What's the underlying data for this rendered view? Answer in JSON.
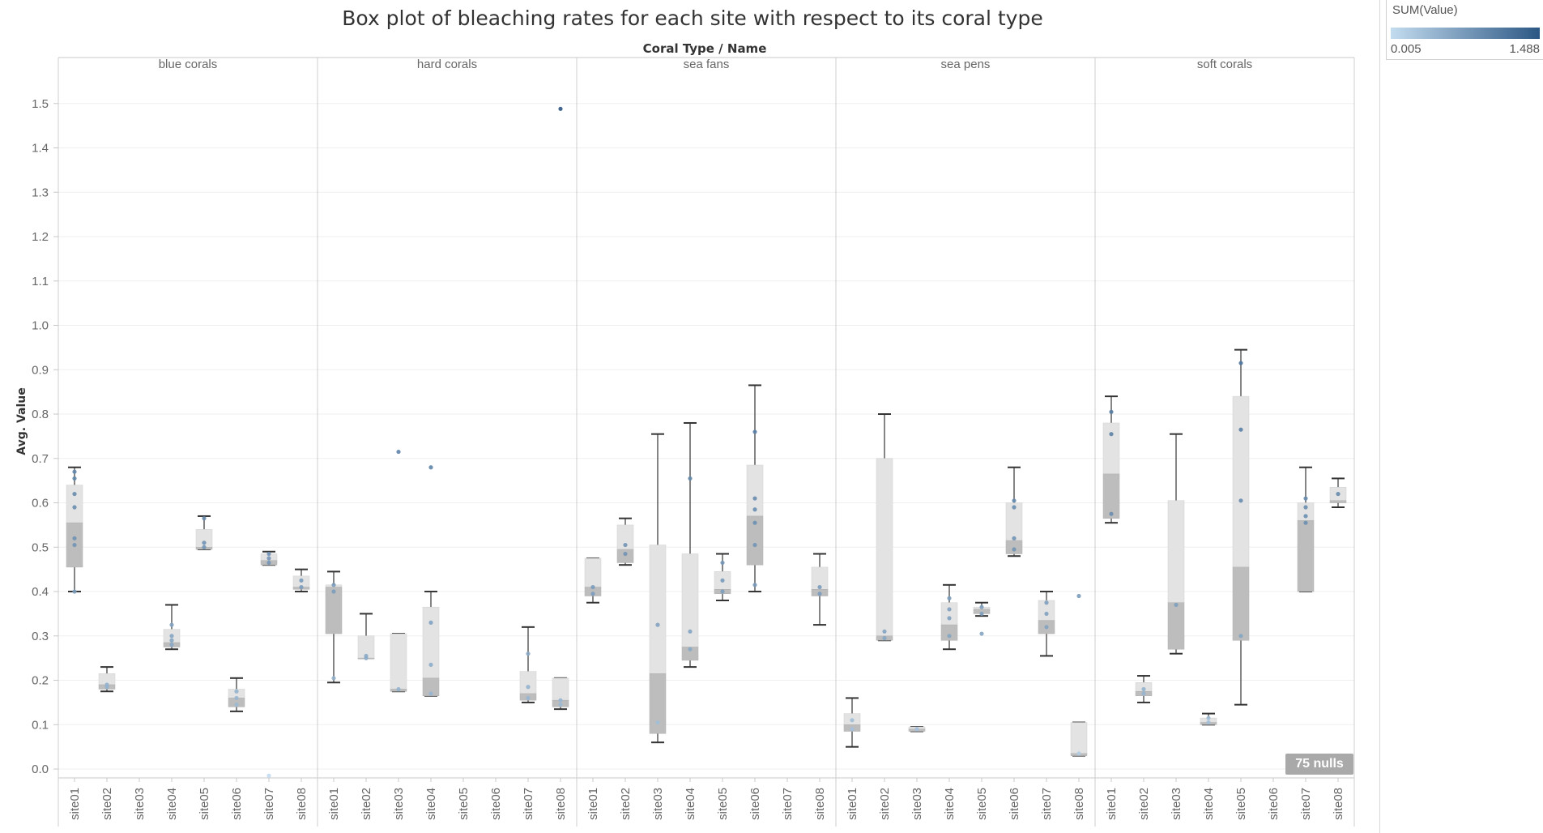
{
  "title": "Box plot of  bleaching rates for each site with respect to its coral type",
  "header_title": "Coral Type  /  Name",
  "legend": {
    "title": "SUM(Value)",
    "min_label": "0.005",
    "max_label": "1.488",
    "color_low": "#c3dcef",
    "color_high": "#2c5784"
  },
  "nulls_badge": "75 nulls",
  "chart_data": {
    "type": "boxplot",
    "ylabel": "Avg. Value",
    "ylim": [
      -0.02,
      1.6
    ],
    "y_ticks": [
      "0.0",
      "0.1",
      "0.2",
      "0.3",
      "0.4",
      "0.5",
      "0.6",
      "0.7",
      "0.8",
      "0.9",
      "1.0",
      "1.1",
      "1.2",
      "1.3",
      "1.4",
      "1.5"
    ],
    "grid": true,
    "color_range": [
      0.005,
      1.488
    ],
    "sites": [
      "site01",
      "site02",
      "site03",
      "site04",
      "site05",
      "site06",
      "site07",
      "site08"
    ],
    "panels": [
      {
        "name": "blue corals",
        "boxes": [
          {
            "site": "site01",
            "min": 0.4,
            "q1": 0.455,
            "median": 0.555,
            "q3": 0.64,
            "max": 0.68,
            "points": [
              0.4,
              0.505,
              0.52,
              0.59,
              0.62,
              0.655,
              0.67
            ]
          },
          {
            "site": "site02",
            "min": 0.175,
            "q1": 0.18,
            "median": 0.19,
            "q3": 0.215,
            "max": 0.23,
            "points": [
              0.185,
              0.19
            ]
          },
          {
            "site": "site03",
            "points": []
          },
          {
            "site": "site04",
            "min": 0.27,
            "q1": 0.275,
            "median": 0.285,
            "q3": 0.315,
            "max": 0.37,
            "points": [
              0.28,
              0.29,
              0.3,
              0.325
            ]
          },
          {
            "site": "site05",
            "min": 0.495,
            "q1": 0.495,
            "median": 0.5,
            "q3": 0.54,
            "max": 0.57,
            "points": [
              0.5,
              0.51,
              0.565
            ]
          },
          {
            "site": "site06",
            "min": 0.13,
            "q1": 0.14,
            "median": 0.16,
            "q3": 0.18,
            "max": 0.205,
            "points": [
              0.145,
              0.16,
              0.175
            ]
          },
          {
            "site": "site07",
            "min": 0.46,
            "q1": 0.46,
            "median": 0.47,
            "q3": 0.485,
            "max": 0.49,
            "points": [
              0.465,
              0.475,
              0.485,
              -0.015
            ]
          },
          {
            "site": "site08",
            "min": 0.4,
            "q1": 0.405,
            "median": 0.41,
            "q3": 0.435,
            "max": 0.45,
            "points": [
              0.41,
              0.425
            ]
          }
        ]
      },
      {
        "name": "hard corals",
        "boxes": [
          {
            "site": "site01",
            "min": 0.195,
            "q1": 0.305,
            "median": 0.41,
            "q3": 0.415,
            "max": 0.445,
            "points": [
              0.205,
              0.4,
              0.415
            ]
          },
          {
            "site": "site02",
            "min": 0.25,
            "q1": 0.25,
            "median": 0.25,
            "q3": 0.3,
            "max": 0.35,
            "points": [
              0.25,
              0.255
            ]
          },
          {
            "site": "site03",
            "min": 0.175,
            "q1": 0.175,
            "median": 0.18,
            "q3": 0.305,
            "max": 0.305,
            "points": [
              0.18,
              0.715
            ]
          },
          {
            "site": "site04",
            "min": 0.165,
            "q1": 0.165,
            "median": 0.205,
            "q3": 0.365,
            "max": 0.4,
            "points": [
              0.17,
              0.235,
              0.33,
              0.68
            ]
          },
          {
            "site": "site05",
            "points": []
          },
          {
            "site": "site06",
            "points": []
          },
          {
            "site": "site07",
            "min": 0.15,
            "q1": 0.155,
            "median": 0.17,
            "q3": 0.22,
            "max": 0.32,
            "points": [
              0.16,
              0.185,
              0.26
            ]
          },
          {
            "site": "site08",
            "min": 0.135,
            "q1": 0.14,
            "median": 0.155,
            "q3": 0.205,
            "max": 0.205,
            "points": [
              0.145,
              0.155,
              1.488
            ]
          }
        ]
      },
      {
        "name": "sea fans",
        "boxes": [
          {
            "site": "site01",
            "min": 0.375,
            "q1": 0.39,
            "median": 0.41,
            "q3": 0.475,
            "max": 0.475,
            "points": [
              0.395,
              0.41
            ]
          },
          {
            "site": "site02",
            "min": 0.46,
            "q1": 0.465,
            "median": 0.495,
            "q3": 0.55,
            "max": 0.565,
            "points": [
              0.485,
              0.505
            ]
          },
          {
            "site": "site03",
            "min": 0.06,
            "q1": 0.08,
            "median": 0.215,
            "q3": 0.505,
            "max": 0.755,
            "points": [
              0.105,
              0.325
            ]
          },
          {
            "site": "site04",
            "min": 0.23,
            "q1": 0.245,
            "median": 0.275,
            "q3": 0.485,
            "max": 0.78,
            "points": [
              0.27,
              0.31,
              0.655
            ]
          },
          {
            "site": "site05",
            "min": 0.38,
            "q1": 0.395,
            "median": 0.405,
            "q3": 0.445,
            "max": 0.485,
            "points": [
              0.4,
              0.425,
              0.465
            ]
          },
          {
            "site": "site06",
            "min": 0.4,
            "q1": 0.46,
            "median": 0.57,
            "q3": 0.685,
            "max": 0.865,
            "points": [
              0.415,
              0.505,
              0.555,
              0.585,
              0.61,
              0.76
            ]
          },
          {
            "site": "site07",
            "points": []
          },
          {
            "site": "site08",
            "min": 0.325,
            "q1": 0.39,
            "median": 0.405,
            "q3": 0.455,
            "max": 0.485,
            "points": [
              0.395,
              0.41
            ]
          }
        ]
      },
      {
        "name": "sea pens",
        "boxes": [
          {
            "site": "site01",
            "min": 0.05,
            "q1": 0.085,
            "median": 0.1,
            "q3": 0.125,
            "max": 0.16,
            "points": [
              0.09,
              0.11
            ]
          },
          {
            "site": "site02",
            "min": 0.29,
            "q1": 0.29,
            "median": 0.3,
            "q3": 0.7,
            "max": 0.8,
            "points": [
              0.295,
              0.31
            ]
          },
          {
            "site": "site03",
            "min": 0.085,
            "q1": 0.085,
            "median": 0.09,
            "q3": 0.095,
            "max": 0.095,
            "points": [
              0.09
            ]
          },
          {
            "site": "site04",
            "min": 0.27,
            "q1": 0.29,
            "median": 0.325,
            "q3": 0.375,
            "max": 0.415,
            "points": [
              0.3,
              0.34,
              0.36,
              0.385
            ]
          },
          {
            "site": "site05",
            "min": 0.345,
            "q1": 0.35,
            "median": 0.36,
            "q3": 0.365,
            "max": 0.375,
            "points": [
              0.35,
              0.365,
              0.305
            ]
          },
          {
            "site": "site06",
            "min": 0.48,
            "q1": 0.485,
            "median": 0.515,
            "q3": 0.6,
            "max": 0.68,
            "points": [
              0.495,
              0.52,
              0.59,
              0.605
            ]
          },
          {
            "site": "site07",
            "min": 0.255,
            "q1": 0.305,
            "median": 0.335,
            "q3": 0.38,
            "max": 0.4,
            "points": [
              0.32,
              0.35,
              0.375
            ]
          },
          {
            "site": "site08",
            "min": 0.03,
            "q1": 0.03,
            "median": 0.035,
            "q3": 0.105,
            "max": 0.105,
            "points": [
              0.035,
              0.39
            ]
          }
        ]
      },
      {
        "name": "soft corals",
        "boxes": [
          {
            "site": "site01",
            "min": 0.555,
            "q1": 0.565,
            "median": 0.665,
            "q3": 0.78,
            "max": 0.84,
            "points": [
              0.575,
              0.755,
              0.805
            ]
          },
          {
            "site": "site02",
            "min": 0.15,
            "q1": 0.165,
            "median": 0.175,
            "q3": 0.195,
            "max": 0.21,
            "points": [
              0.17,
              0.18
            ]
          },
          {
            "site": "site03",
            "min": 0.26,
            "q1": 0.27,
            "median": 0.375,
            "q3": 0.605,
            "max": 0.755,
            "points": [
              0.37
            ]
          },
          {
            "site": "site04",
            "min": 0.1,
            "q1": 0.1,
            "median": 0.105,
            "q3": 0.115,
            "max": 0.125,
            "points": [
              0.105,
              0.115
            ]
          },
          {
            "site": "site05",
            "min": 0.145,
            "q1": 0.29,
            "median": 0.455,
            "q3": 0.84,
            "max": 0.945,
            "points": [
              0.3,
              0.605,
              0.765,
              0.915
            ]
          },
          {
            "site": "site06",
            "points": []
          },
          {
            "site": "site07",
            "min": 0.4,
            "q1": 0.4,
            "median": 0.56,
            "q3": 0.6,
            "max": 0.68,
            "points": [
              0.555,
              0.57,
              0.59,
              0.61
            ]
          },
          {
            "site": "site08",
            "min": 0.59,
            "q1": 0.6,
            "median": 0.605,
            "q3": 0.635,
            "max": 0.655,
            "points": [
              0.62
            ]
          }
        ]
      }
    ]
  }
}
